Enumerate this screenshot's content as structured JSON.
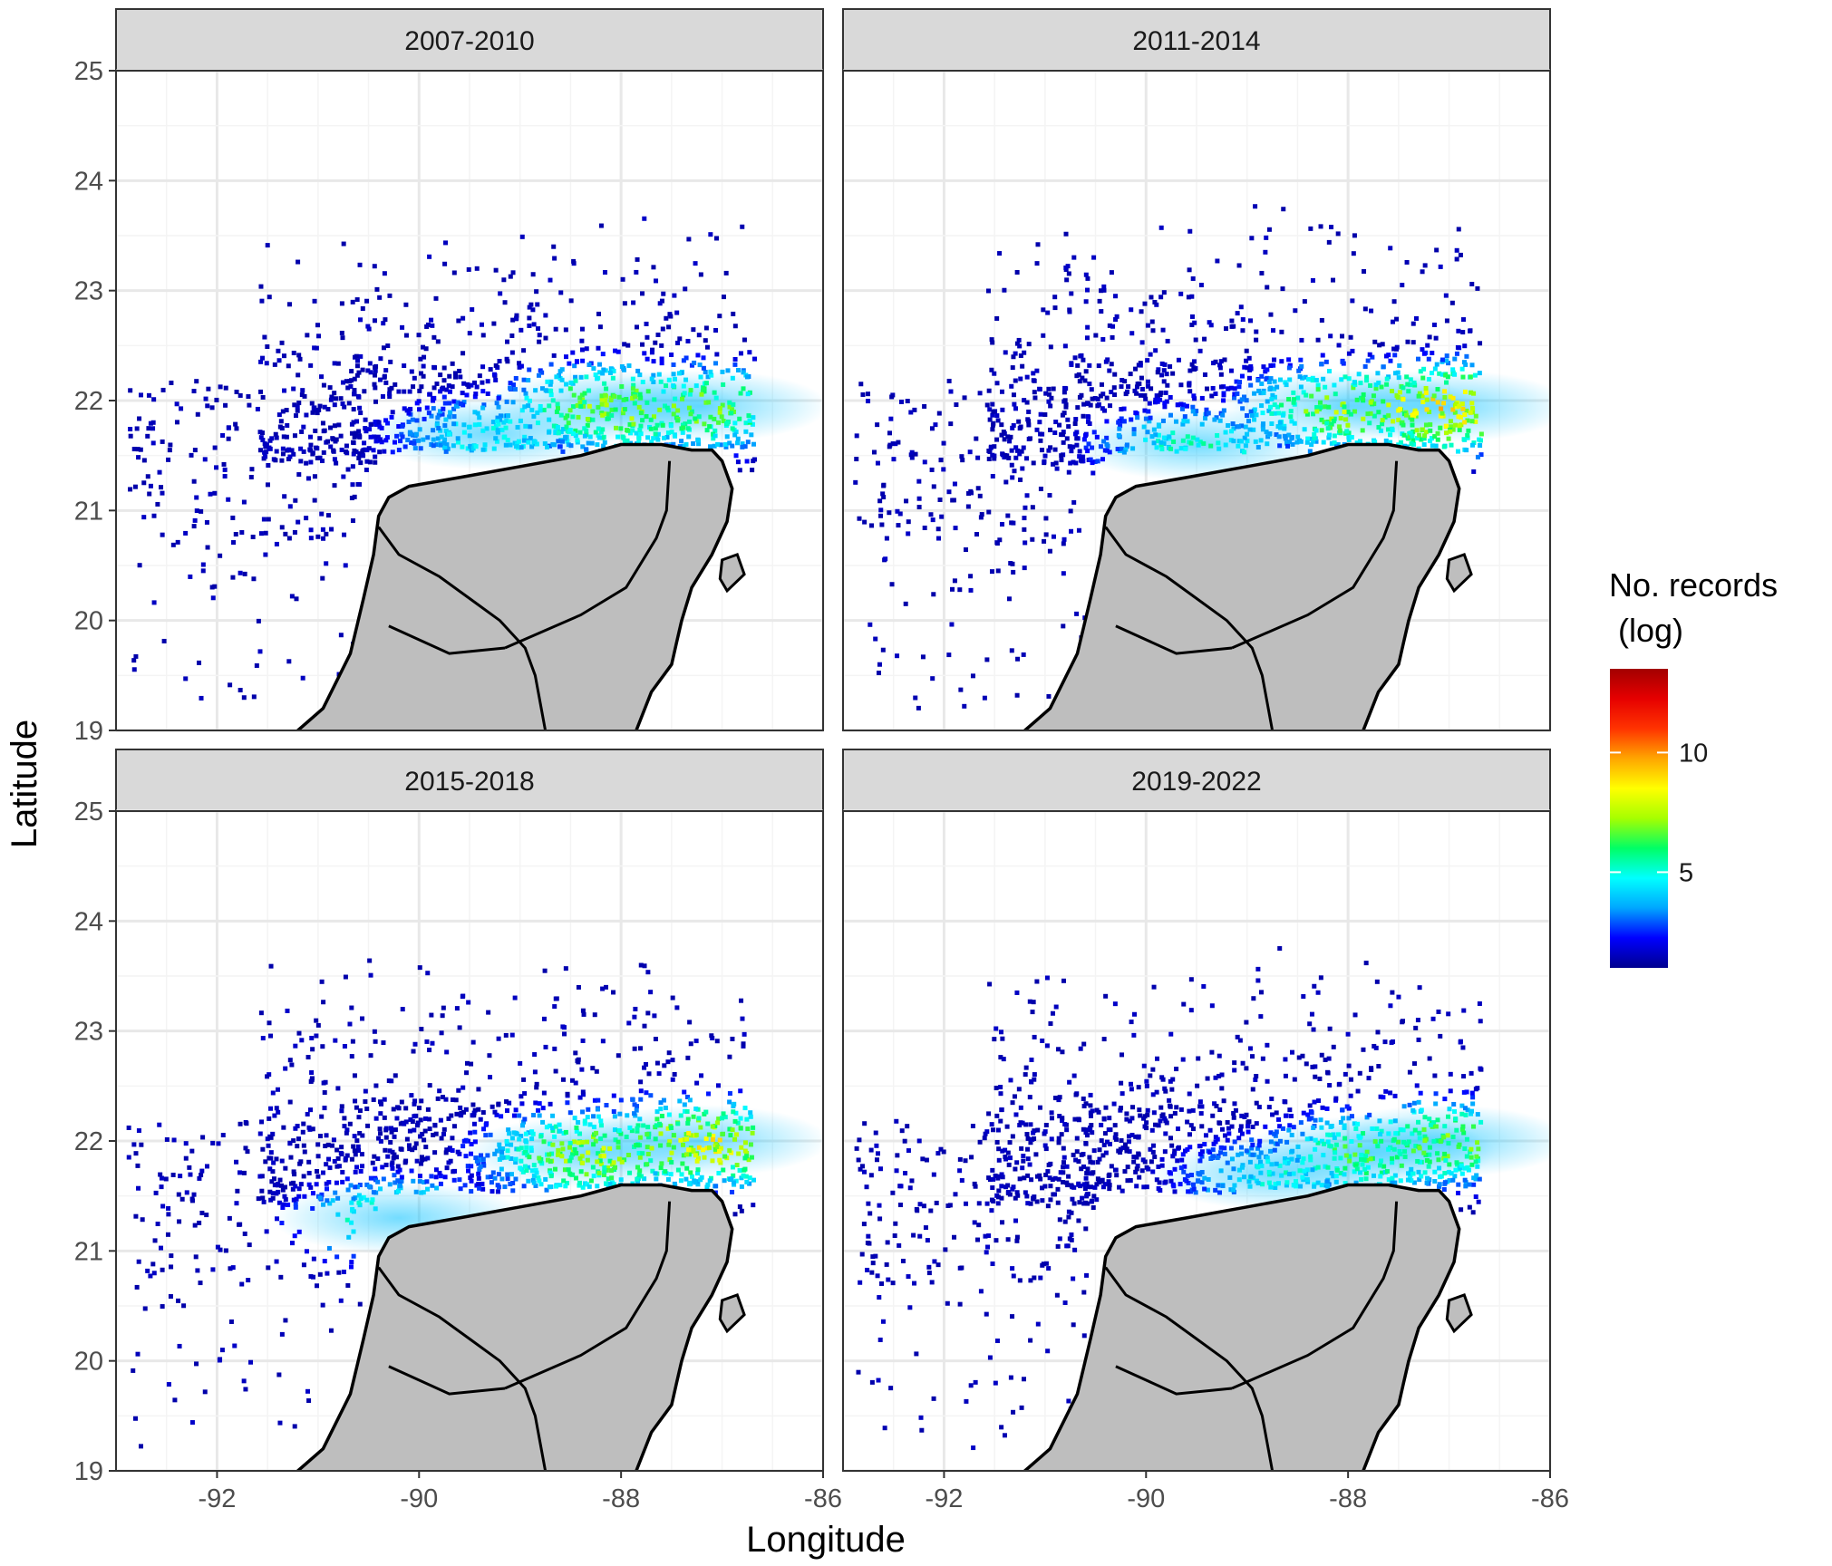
{
  "chart_data": {
    "type": "heatmap",
    "facet_layout": {
      "rows": 2,
      "cols": 2
    },
    "xlabel": "Longitude",
    "ylabel": "Latitude",
    "xlim": [
      -93,
      -86
    ],
    "ylim": [
      19,
      25
    ],
    "x_ticks": [
      -92,
      -90,
      -88,
      -86
    ],
    "y_ticks": [
      19,
      20,
      21,
      22,
      23,
      24,
      25
    ],
    "grid": true,
    "land_color": "#bebebe",
    "coast_color": "#000000",
    "strip_color": "#d9d9d9",
    "legend": {
      "title_line1": "No. records",
      "title_line2": "(log)",
      "placement": "right",
      "range": [
        1,
        13.5
      ],
      "ticks": [
        5,
        10
      ],
      "colors": [
        "#00008f",
        "#0000ff",
        "#00a6ff",
        "#00ffff",
        "#00ff66",
        "#a6ff00",
        "#ffff00",
        "#ffa600",
        "#ff3300",
        "#e60000",
        "#a30000"
      ]
    },
    "panels": [
      {
        "name": "2007-2010",
        "hotspots": [
          {
            "lon": -88.1,
            "lat": 21.95,
            "value": 7.5
          },
          {
            "lon": -87.2,
            "lat": 21.95,
            "value": 7.0
          },
          {
            "lon": -89.3,
            "lat": 21.7,
            "value": 5.0
          }
        ]
      },
      {
        "name": "2011-2014",
        "hotspots": [
          {
            "lon": -88.0,
            "lat": 21.95,
            "value": 7.5
          },
          {
            "lon": -87.05,
            "lat": 21.95,
            "value": 9.0
          },
          {
            "lon": -89.5,
            "lat": 21.6,
            "value": 5.5
          }
        ]
      },
      {
        "name": "2015-2018",
        "hotspots": [
          {
            "lon": -88.3,
            "lat": 21.9,
            "value": 7.5
          },
          {
            "lon": -87.2,
            "lat": 22.0,
            "value": 8.5
          },
          {
            "lon": -90.2,
            "lat": 21.3,
            "value": 6.0
          }
        ]
      },
      {
        "name": "2019-2022",
        "hotspots": [
          {
            "lon": -87.8,
            "lat": 21.9,
            "value": 6.5
          },
          {
            "lon": -87.05,
            "lat": 22.0,
            "value": 7.0
          },
          {
            "lon": -88.7,
            "lat": 21.7,
            "value": 5.0
          }
        ]
      }
    ]
  }
}
